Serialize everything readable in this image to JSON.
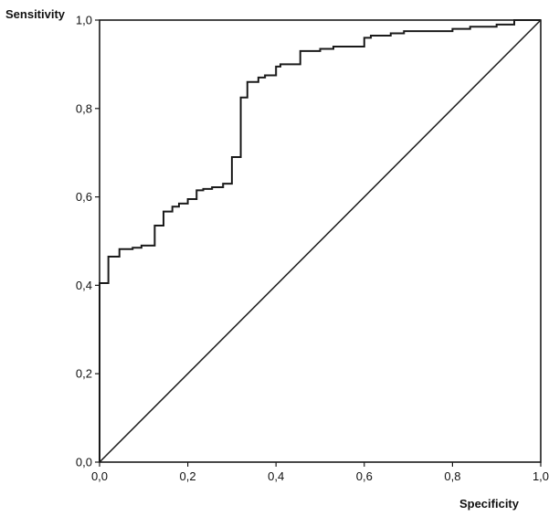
{
  "chart_data": {
    "type": "line",
    "title": "",
    "xlabel": "Specificity",
    "ylabel": "Sensitivity",
    "xlim": [
      0,
      1
    ],
    "ylim": [
      0,
      1
    ],
    "grid": false,
    "legend": "none",
    "x_ticks": [
      0,
      0.2,
      0.4,
      0.6,
      0.8,
      1.0
    ],
    "y_ticks": [
      0,
      0.2,
      0.4,
      0.6,
      0.8,
      1.0
    ],
    "x_tick_labels": [
      "0,0",
      "0,2",
      "0,4",
      "0,6",
      "0,8",
      "1,0"
    ],
    "y_tick_labels": [
      "0,0",
      "0,2",
      "0,4",
      "0,6",
      "0,8",
      "1,0"
    ],
    "colors": {
      "curve": "#1a1a1a",
      "reference": "#1a1a1a",
      "frame": "#1a1a1a"
    },
    "series": [
      {
        "name": "",
        "style": "step",
        "x": [
          0.0,
          0.0,
          0.02,
          0.02,
          0.045,
          0.045,
          0.075,
          0.075,
          0.095,
          0.095,
          0.125,
          0.125,
          0.145,
          0.145,
          0.165,
          0.165,
          0.18,
          0.18,
          0.2,
          0.2,
          0.22,
          0.22,
          0.235,
          0.235,
          0.255,
          0.255,
          0.28,
          0.28,
          0.3,
          0.3,
          0.32,
          0.32,
          0.335,
          0.335,
          0.36,
          0.36,
          0.375,
          0.375,
          0.4,
          0.4,
          0.41,
          0.41,
          0.455,
          0.455,
          0.5,
          0.5,
          0.53,
          0.53,
          0.6,
          0.6,
          0.615,
          0.615,
          0.66,
          0.66,
          0.69,
          0.69,
          0.8,
          0.8,
          0.84,
          0.84,
          0.9,
          0.9,
          0.94,
          0.94,
          1.0
        ],
        "y": [
          0.0,
          0.405,
          0.405,
          0.465,
          0.465,
          0.482,
          0.482,
          0.485,
          0.485,
          0.49,
          0.49,
          0.535,
          0.535,
          0.567,
          0.567,
          0.578,
          0.578,
          0.585,
          0.585,
          0.595,
          0.595,
          0.615,
          0.615,
          0.618,
          0.618,
          0.622,
          0.622,
          0.63,
          0.63,
          0.69,
          0.69,
          0.825,
          0.825,
          0.86,
          0.86,
          0.87,
          0.87,
          0.875,
          0.875,
          0.895,
          0.895,
          0.9,
          0.9,
          0.93,
          0.93,
          0.935,
          0.935,
          0.94,
          0.94,
          0.96,
          0.96,
          0.965,
          0.965,
          0.97,
          0.97,
          0.975,
          0.975,
          0.98,
          0.98,
          0.985,
          0.985,
          0.99,
          0.99,
          1.0,
          1.0
        ]
      },
      {
        "name": "",
        "style": "line",
        "x": [
          0,
          1
        ],
        "y": [
          0,
          1
        ]
      }
    ]
  }
}
